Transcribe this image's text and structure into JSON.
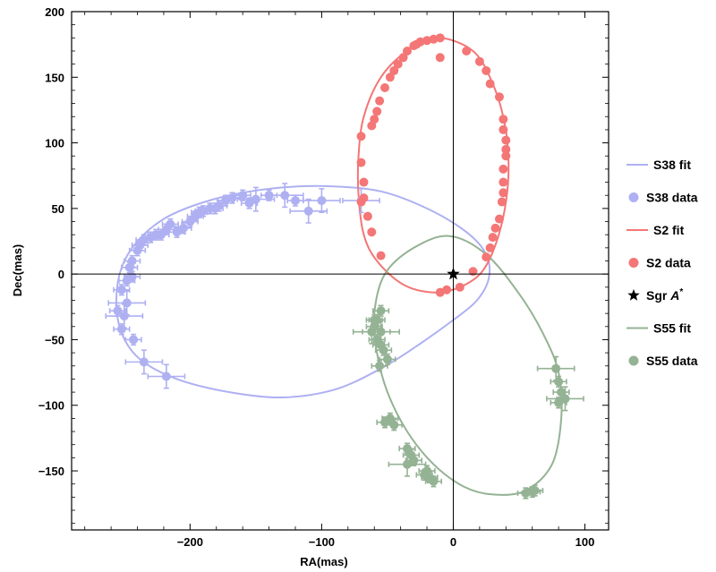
{
  "chart_data": {
    "type": "scatter",
    "xlabel": "RA(mas)",
    "ylabel": "Dec(mas)",
    "xlim": [
      -290,
      118
    ],
    "ylim": [
      -195,
      200
    ],
    "grid": false,
    "legend_position": "right",
    "x_ticks": [
      -200,
      -100,
      0,
      100
    ],
    "x_tick_labels": [
      "−200",
      "−100",
      "0",
      "100"
    ],
    "y_ticks": [
      -150,
      -100,
      -50,
      0,
      50,
      100,
      150,
      200
    ],
    "y_tick_labels": [
      "−150",
      "−100",
      "−50",
      "0",
      "50",
      "100",
      "150",
      "200"
    ],
    "colors": {
      "S38": "#aeb0f2",
      "S2": "#f47676",
      "S55": "#94b294",
      "SgrA": "#000000"
    },
    "legend": [
      {
        "label": "S38  fit",
        "kind": "line",
        "series": "S38"
      },
      {
        "label": "S38  data",
        "kind": "dot",
        "series": "S38"
      },
      {
        "label": "S2  fit",
        "kind": "line",
        "series": "S2"
      },
      {
        "label": "S2  data",
        "kind": "dot",
        "series": "S2"
      },
      {
        "label": "Sgr A*",
        "kind": "star",
        "series": "SgrA"
      },
      {
        "label": "S55  fit",
        "kind": "line",
        "series": "S55"
      },
      {
        "label": "S55  data",
        "kind": "dot",
        "series": "S55"
      }
    ],
    "sgr_a": {
      "x": 0,
      "y": 0
    },
    "fits": [
      {
        "series": "S38",
        "points": [
          [
            -95,
            67
          ],
          [
            -55,
            63
          ],
          [
            -20,
            50
          ],
          [
            10,
            32
          ],
          [
            25,
            15
          ],
          [
            27,
            -3
          ],
          [
            18,
            -20
          ],
          [
            0,
            -35
          ],
          [
            -28,
            -55
          ],
          [
            -55,
            -72
          ],
          [
            -90,
            -88
          ],
          [
            -130,
            -94
          ],
          [
            -170,
            -90
          ],
          [
            -210,
            -80
          ],
          [
            -238,
            -65
          ],
          [
            -252,
            -45
          ],
          [
            -256,
            -20
          ],
          [
            -252,
            5
          ],
          [
            -240,
            25
          ],
          [
            -220,
            42
          ],
          [
            -195,
            53
          ],
          [
            -165,
            61
          ],
          [
            -130,
            66
          ],
          [
            -95,
            67
          ]
        ]
      },
      {
        "series": "S2",
        "points": [
          [
            -12,
            180
          ],
          [
            -35,
            170
          ],
          [
            -55,
            150
          ],
          [
            -68,
            120
          ],
          [
            -72,
            90
          ],
          [
            -72,
            60
          ],
          [
            -68,
            30
          ],
          [
            -58,
            10
          ],
          [
            -38,
            -8
          ],
          [
            -15,
            -14
          ],
          [
            5,
            -10
          ],
          [
            22,
            2
          ],
          [
            33,
            25
          ],
          [
            40,
            55
          ],
          [
            42,
            85
          ],
          [
            39,
            115
          ],
          [
            30,
            145
          ],
          [
            15,
            170
          ],
          [
            -12,
            180
          ]
        ]
      },
      {
        "series": "S55",
        "points": [
          [
            -3,
            29
          ],
          [
            -30,
            20
          ],
          [
            -52,
            0
          ],
          [
            -60,
            -30
          ],
          [
            -58,
            -60
          ],
          [
            -50,
            -90
          ],
          [
            -35,
            -120
          ],
          [
            -15,
            -145
          ],
          [
            8,
            -162
          ],
          [
            30,
            -168
          ],
          [
            55,
            -165
          ],
          [
            75,
            -145
          ],
          [
            82,
            -110
          ],
          [
            80,
            -75
          ],
          [
            68,
            -45
          ],
          [
            50,
            -15
          ],
          [
            25,
            15
          ],
          [
            -3,
            29
          ]
        ]
      }
    ],
    "series": [
      {
        "name": "S38",
        "x_err": 6,
        "y_err": 4,
        "points": [
          [
            -252,
            -42
          ],
          [
            -250,
            -32
          ],
          [
            -248,
            -22
          ],
          [
            -252,
            -12
          ],
          [
            -248,
            -5
          ],
          [
            -246,
            5
          ],
          [
            -244,
            10
          ],
          [
            -240,
            18
          ],
          [
            -238,
            22
          ],
          [
            -235,
            26
          ],
          [
            -230,
            28
          ],
          [
            -222,
            30
          ],
          [
            -218,
            34
          ],
          [
            -215,
            38
          ],
          [
            -210,
            32
          ],
          [
            -205,
            35
          ],
          [
            -200,
            40
          ],
          [
            -196,
            44
          ],
          [
            -193,
            47
          ],
          [
            -190,
            48
          ],
          [
            -185,
            50
          ],
          [
            -178,
            52
          ],
          [
            -173,
            56
          ],
          [
            -168,
            58
          ],
          [
            -160,
            60
          ],
          [
            -150,
            57
          ],
          [
            -140,
            60
          ],
          [
            -128,
            60
          ],
          [
            -120,
            56
          ],
          [
            -110,
            48
          ],
          [
            -100,
            56
          ],
          [
            -70,
            56
          ],
          [
            -235,
            -67
          ],
          [
            -218,
            -78
          ],
          [
            -243,
            -50
          ],
          [
            -255,
            -28
          ],
          [
            -244,
            -2
          ],
          [
            -226,
            30
          ],
          [
            -181,
            50
          ],
          [
            -155,
            54
          ]
        ],
        "big_x_err": [
          [
            -250,
            -32
          ],
          [
            -248,
            -22
          ],
          [
            -150,
            57
          ],
          [
            -128,
            60
          ],
          [
            -110,
            48
          ],
          [
            -100,
            56
          ],
          [
            -70,
            56
          ],
          [
            -235,
            -67
          ],
          [
            -218,
            -78
          ]
        ]
      },
      {
        "name": "S2",
        "x_err": 2,
        "y_err": 2,
        "points": [
          [
            -10,
            180
          ],
          [
            -15,
            179
          ],
          [
            -20,
            178
          ],
          [
            -25,
            177
          ],
          [
            -28,
            175
          ],
          [
            -30,
            174
          ],
          [
            -35,
            170
          ],
          [
            -38,
            165
          ],
          [
            -42,
            160
          ],
          [
            -45,
            155
          ],
          [
            -48,
            150
          ],
          [
            -52,
            142
          ],
          [
            -56,
            132
          ],
          [
            -58,
            124
          ],
          [
            -60,
            118
          ],
          [
            -62,
            113
          ],
          [
            -70,
            105
          ],
          [
            -70,
            85
          ],
          [
            -68,
            70
          ],
          [
            -68,
            58
          ],
          [
            -70,
            55
          ],
          [
            -65,
            44
          ],
          [
            -62,
            32
          ],
          [
            -55,
            14
          ],
          [
            -10,
            -14
          ],
          [
            -5,
            -12
          ],
          [
            5,
            -10
          ],
          [
            15,
            2
          ],
          [
            25,
            13
          ],
          [
            28,
            20
          ],
          [
            30,
            28
          ],
          [
            32,
            35
          ],
          [
            35,
            42
          ],
          [
            37,
            55
          ],
          [
            38,
            62
          ],
          [
            38,
            70
          ],
          [
            38,
            80
          ],
          [
            40,
            90
          ],
          [
            40,
            95
          ],
          [
            40,
            102
          ],
          [
            38,
            110
          ],
          [
            38,
            118
          ],
          [
            35,
            135
          ],
          [
            28,
            145
          ],
          [
            25,
            155
          ],
          [
            20,
            162
          ],
          [
            10,
            170
          ],
          [
            -10,
            165
          ]
        ]
      },
      {
        "name": "S55",
        "x_err": 6,
        "y_err": 4,
        "points": [
          [
            -55,
            -28
          ],
          [
            -58,
            -35
          ],
          [
            -60,
            -40
          ],
          [
            -55,
            -44
          ],
          [
            -62,
            -44
          ],
          [
            -58,
            -50
          ],
          [
            -55,
            -54
          ],
          [
            -53,
            -58
          ],
          [
            -50,
            -65
          ],
          [
            -48,
            -110
          ],
          [
            -52,
            -113
          ],
          [
            -45,
            -115
          ],
          [
            -35,
            -133
          ],
          [
            -32,
            -138
          ],
          [
            -30,
            -142
          ],
          [
            -35,
            -145
          ],
          [
            -20,
            -150
          ],
          [
            -18,
            -155
          ],
          [
            -15,
            -158
          ],
          [
            -22,
            -153
          ],
          [
            55,
            -167
          ],
          [
            60,
            -166
          ],
          [
            62,
            -165
          ],
          [
            78,
            -72
          ],
          [
            80,
            -82
          ],
          [
            82,
            -90
          ],
          [
            85,
            -95
          ],
          [
            80,
            -98
          ],
          [
            -56,
            -70
          ],
          [
            -60,
            -35
          ]
        ],
        "big_x_err": [
          [
            -55,
            -44
          ],
          [
            -62,
            -44
          ],
          [
            78,
            -72
          ],
          [
            85,
            -95
          ],
          [
            -35,
            -145
          ]
        ]
      }
    ]
  }
}
